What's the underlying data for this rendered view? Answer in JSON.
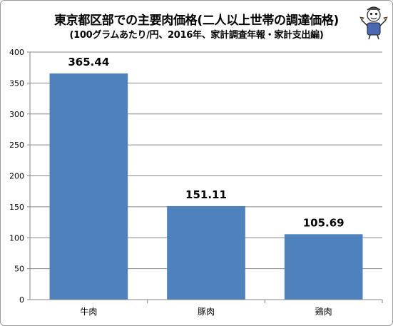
{
  "title": "東京都区部での主要肉価格(二人以上世帯の調達価格)",
  "subtitle": "(100グラムあたり/円、2016年、家計調査年報・家計支出編)",
  "mascot_icon": "mascot-character-icon",
  "colors": {
    "bar": "#4f81bd",
    "grid": "#868686",
    "axis": "#868686"
  },
  "chart_data": {
    "type": "bar",
    "title": "東京都区部での主要肉価格(二人以上世帯の調達価格)",
    "subtitle": "(100グラムあたり/円、2016年、家計調査年報・家計支出編)",
    "categories": [
      "牛肉",
      "豚肉",
      "鶏肉"
    ],
    "values": [
      365.44,
      151.11,
      105.69
    ],
    "value_labels": [
      "365.44",
      "151.11",
      "105.69"
    ],
    "ylim": [
      0,
      400
    ],
    "yticks": [
      0,
      50,
      100,
      150,
      200,
      250,
      300,
      350,
      400
    ],
    "xlabel": "",
    "ylabel": "",
    "grid": true,
    "legend": false
  }
}
